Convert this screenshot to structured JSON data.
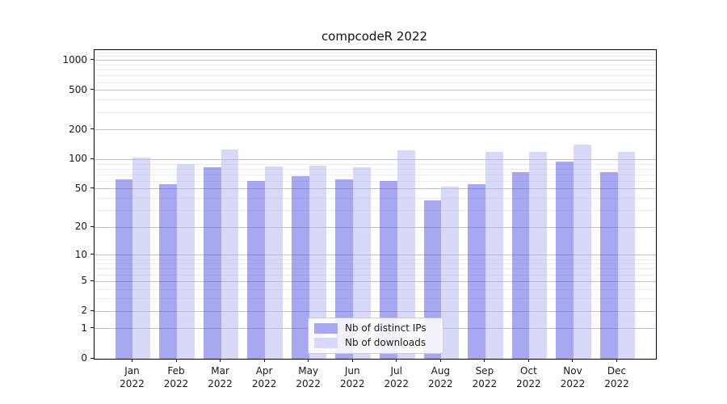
{
  "title": "compcodeR 2022",
  "legend": {
    "items": [
      {
        "label": "Nb of distinct IPs",
        "swatch_color": "#a8a8f2"
      },
      {
        "label": "Nb of downloads",
        "swatch_color": "#d8d8f8"
      }
    ]
  },
  "axis": {
    "y_ticks": [
      0,
      1,
      2,
      5,
      10,
      20,
      50,
      100,
      200,
      500,
      1000
    ],
    "y_minor": [
      3,
      4,
      6,
      7,
      8,
      9,
      30,
      40,
      60,
      70,
      80,
      90,
      300,
      400,
      600,
      700,
      800,
      900,
      1100,
      1200
    ],
    "y_top": 1275,
    "year": "2022"
  },
  "chart_data": {
    "type": "bar",
    "title": "compcodeR 2022",
    "categories": [
      "Jan",
      "Feb",
      "Mar",
      "Apr",
      "May",
      "Jun",
      "Jul",
      "Aug",
      "Sep",
      "Oct",
      "Nov",
      "Dec"
    ],
    "x_tick_second_line": "2022",
    "series": [
      {
        "name": "Nb of distinct IPs",
        "color": "rgba(97,97,232,0.55)",
        "values": [
          63,
          56,
          84,
          61,
          68,
          63,
          61,
          38,
          56,
          75,
          95,
          75
        ]
      },
      {
        "name": "Nb of downloads",
        "color": "rgba(184,184,242,0.55)",
        "values": [
          104,
          90,
          127,
          85,
          87,
          84,
          125,
          53,
          120,
          119,
          141,
          120
        ]
      }
    ],
    "xlabel": "",
    "ylabel": "",
    "yscale": "log1p",
    "ylim": [
      0,
      1275
    ],
    "grid": true,
    "legend_position": "lower center"
  }
}
